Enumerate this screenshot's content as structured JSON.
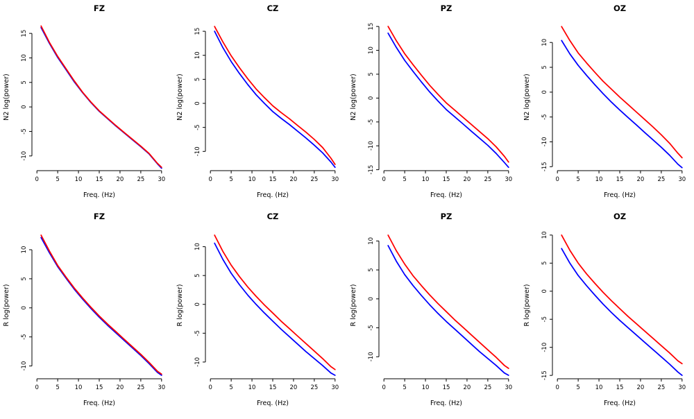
{
  "figure": {
    "background": "#ffffff",
    "rows": 2,
    "cols": 4
  },
  "colors": {
    "red_series": "#FF0000",
    "blue_series": "#0000FF",
    "axis": "#000000"
  },
  "chart_data": [
    {
      "type": "line",
      "title": "FZ",
      "xlabel": "Freq. (Hz)",
      "ylabel": "N2 log(power)",
      "xlim": [
        -1.2,
        31.2
      ],
      "ylim": [
        -13.0,
        17.0
      ],
      "xticks": [
        0,
        5,
        10,
        15,
        20,
        25,
        30
      ],
      "yticks": [
        -10,
        -5,
        0,
        5,
        10,
        15
      ],
      "x": [
        1,
        3,
        5,
        7,
        9,
        11,
        13,
        15,
        17,
        19,
        21,
        23,
        25,
        27,
        29,
        30
      ],
      "series": [
        {
          "name": "red",
          "color": "#FF0000",
          "values": [
            16.5,
            13.2,
            10.3,
            7.8,
            5.3,
            3.0,
            1.0,
            -0.8,
            -2.3,
            -3.8,
            -5.2,
            -6.6,
            -8.0,
            -9.5,
            -11.5,
            -12.3
          ]
        },
        {
          "name": "blue",
          "color": "#0000FF",
          "values": [
            16.2,
            13.0,
            10.1,
            7.6,
            5.1,
            2.9,
            0.9,
            -0.9,
            -2.4,
            -3.9,
            -5.3,
            -6.7,
            -8.1,
            -9.6,
            -11.6,
            -12.5
          ]
        }
      ]
    },
    {
      "type": "line",
      "title": "CZ",
      "xlabel": "Freq. (Hz)",
      "ylabel": "N2 log(power)",
      "xlim": [
        -1.2,
        31.2
      ],
      "ylim": [
        -14.0,
        16.6
      ],
      "xticks": [
        0,
        5,
        10,
        15,
        20,
        25,
        30
      ],
      "yticks": [
        -10,
        -5,
        0,
        5,
        10,
        15
      ],
      "x": [
        1,
        3,
        5,
        7,
        9,
        11,
        13,
        15,
        17,
        19,
        21,
        23,
        25,
        27,
        29,
        30
      ],
      "series": [
        {
          "name": "red",
          "color": "#FF0000",
          "values": [
            16.0,
            12.8,
            9.9,
            7.4,
            5.1,
            3.0,
            1.2,
            -0.5,
            -1.9,
            -3.2,
            -4.6,
            -6.0,
            -7.5,
            -9.2,
            -11.4,
            -12.7
          ]
        },
        {
          "name": "blue",
          "color": "#0000FF",
          "values": [
            15.0,
            11.6,
            8.7,
            6.2,
            3.9,
            1.8,
            0.0,
            -1.7,
            -3.1,
            -4.4,
            -5.8,
            -7.2,
            -8.7,
            -10.3,
            -12.2,
            -13.3
          ]
        }
      ]
    },
    {
      "type": "line",
      "title": "PZ",
      "xlabel": "Freq. (Hz)",
      "ylabel": "N2 log(power)",
      "xlim": [
        -1.2,
        31.2
      ],
      "ylim": [
        -15.2,
        15.6
      ],
      "xticks": [
        0,
        5,
        10,
        15,
        20,
        25,
        30
      ],
      "yticks": [
        -15,
        -10,
        -5,
        0,
        5,
        10,
        15
      ],
      "x": [
        1,
        3,
        5,
        7,
        9,
        11,
        13,
        15,
        17,
        19,
        21,
        23,
        25,
        27,
        29,
        30
      ],
      "series": [
        {
          "name": "red",
          "color": "#FF0000",
          "values": [
            15.0,
            12.0,
            9.3,
            7.0,
            4.8,
            2.7,
            0.8,
            -1.0,
            -2.5,
            -4.0,
            -5.5,
            -7.0,
            -8.5,
            -10.2,
            -12.2,
            -13.4
          ]
        },
        {
          "name": "blue",
          "color": "#0000FF",
          "values": [
            13.6,
            10.6,
            7.9,
            5.6,
            3.4,
            1.3,
            -0.6,
            -2.4,
            -3.9,
            -5.4,
            -6.9,
            -8.4,
            -9.9,
            -11.6,
            -13.5,
            -14.5
          ]
        }
      ]
    },
    {
      "type": "line",
      "title": "OZ",
      "xlabel": "Freq. (Hz)",
      "ylabel": "N2 log(power)",
      "xlim": [
        -1.2,
        31.2
      ],
      "ylim": [
        -15.8,
        13.8
      ],
      "xticks": [
        0,
        5,
        10,
        15,
        20,
        25,
        30
      ],
      "yticks": [
        -15,
        -10,
        -5,
        0,
        5,
        10
      ],
      "x": [
        1,
        3,
        5,
        7,
        9,
        11,
        13,
        15,
        17,
        19,
        21,
        23,
        25,
        27,
        29,
        30
      ],
      "series": [
        {
          "name": "red",
          "color": "#FF0000",
          "values": [
            13.2,
            10.4,
            7.9,
            5.9,
            4.0,
            2.2,
            0.6,
            -1.0,
            -2.5,
            -4.0,
            -5.5,
            -7.0,
            -8.6,
            -10.3,
            -12.3,
            -13.2
          ]
        },
        {
          "name": "blue",
          "color": "#0000FF",
          "values": [
            10.4,
            7.7,
            5.4,
            3.4,
            1.5,
            -0.3,
            -2.0,
            -3.6,
            -5.1,
            -6.6,
            -8.1,
            -9.6,
            -11.1,
            -12.7,
            -14.5,
            -15.2
          ]
        }
      ]
    },
    {
      "type": "line",
      "title": "FZ",
      "xlabel": "Freq. (Hz)",
      "ylabel": "R log(power)",
      "xlim": [
        -1.2,
        31.2
      ],
      "ylim": [
        -12.2,
        13.1
      ],
      "xticks": [
        0,
        5,
        10,
        15,
        20,
        25,
        30
      ],
      "yticks": [
        -10,
        -5,
        0,
        5,
        10
      ],
      "x": [
        1,
        3,
        5,
        7,
        9,
        11,
        13,
        15,
        17,
        19,
        21,
        23,
        25,
        27,
        29,
        30
      ],
      "series": [
        {
          "name": "red",
          "color": "#FF0000",
          "values": [
            12.5,
            9.8,
            7.3,
            5.3,
            3.4,
            1.7,
            0.1,
            -1.4,
            -2.8,
            -4.1,
            -5.4,
            -6.7,
            -8.0,
            -9.4,
            -10.9,
            -11.4
          ]
        },
        {
          "name": "blue",
          "color": "#0000FF",
          "values": [
            12.1,
            9.5,
            7.1,
            5.1,
            3.2,
            1.5,
            -0.1,
            -1.6,
            -3.0,
            -4.3,
            -5.6,
            -6.9,
            -8.2,
            -9.6,
            -11.1,
            -11.6
          ]
        }
      ]
    },
    {
      "type": "line",
      "title": "CZ",
      "xlabel": "Freq. (Hz)",
      "ylabel": "R log(power)",
      "xlim": [
        -1.2,
        31.2
      ],
      "ylim": [
        -12.9,
        12.6
      ],
      "xticks": [
        0,
        5,
        10,
        15,
        20,
        25,
        30
      ],
      "yticks": [
        -10,
        -5,
        0,
        5,
        10
      ],
      "x": [
        1,
        3,
        5,
        7,
        9,
        11,
        13,
        15,
        17,
        19,
        21,
        23,
        25,
        27,
        29,
        30
      ],
      "series": [
        {
          "name": "red",
          "color": "#FF0000",
          "values": [
            12.0,
            9.2,
            6.8,
            4.8,
            3.0,
            1.4,
            -0.1,
            -1.5,
            -2.9,
            -4.2,
            -5.5,
            -6.8,
            -8.1,
            -9.4,
            -10.8,
            -11.3
          ]
        },
        {
          "name": "blue",
          "color": "#0000FF",
          "values": [
            10.6,
            7.8,
            5.4,
            3.4,
            1.6,
            0.0,
            -1.5,
            -2.9,
            -4.3,
            -5.6,
            -6.9,
            -8.2,
            -9.4,
            -10.6,
            -11.9,
            -12.3
          ]
        }
      ]
    },
    {
      "type": "line",
      "title": "PZ",
      "xlabel": "Freq. (Hz)",
      "ylabel": "R log(power)",
      "xlim": [
        -1.2,
        31.2
      ],
      "ylim": [
        -13.8,
        11.6
      ],
      "xticks": [
        0,
        5,
        10,
        15,
        20,
        25,
        30
      ],
      "yticks": [
        -10,
        -5,
        0,
        5,
        10
      ],
      "x": [
        1,
        3,
        5,
        7,
        9,
        11,
        13,
        15,
        17,
        19,
        21,
        23,
        25,
        27,
        29,
        30
      ],
      "series": [
        {
          "name": "red",
          "color": "#FF0000",
          "values": [
            11.0,
            8.3,
            6.0,
            4.0,
            2.3,
            0.7,
            -0.8,
            -2.2,
            -3.6,
            -4.9,
            -6.2,
            -7.5,
            -8.8,
            -10.1,
            -11.5,
            -12.0
          ]
        },
        {
          "name": "blue",
          "color": "#0000FF",
          "values": [
            9.2,
            6.5,
            4.2,
            2.3,
            0.6,
            -1.0,
            -2.5,
            -3.9,
            -5.2,
            -6.5,
            -7.8,
            -9.1,
            -10.3,
            -11.5,
            -12.8,
            -13.2
          ]
        }
      ]
    },
    {
      "type": "line",
      "title": "OZ",
      "xlabel": "Freq. (Hz)",
      "ylabel": "R log(power)",
      "xlim": [
        -1.2,
        31.2
      ],
      "ylim": [
        -15.6,
        10.6
      ],
      "xticks": [
        0,
        5,
        10,
        15,
        20,
        25,
        30
      ],
      "yticks": [
        -15,
        -10,
        -5,
        0,
        5,
        10
      ],
      "x": [
        1,
        3,
        5,
        7,
        9,
        11,
        13,
        15,
        17,
        19,
        21,
        23,
        25,
        27,
        29,
        30
      ],
      "series": [
        {
          "name": "red",
          "color": "#FF0000",
          "values": [
            10.0,
            7.3,
            5.0,
            3.1,
            1.4,
            -0.2,
            -1.7,
            -3.1,
            -4.5,
            -5.8,
            -7.1,
            -8.4,
            -9.7,
            -11.0,
            -12.4,
            -12.9
          ]
        },
        {
          "name": "blue",
          "color": "#0000FF",
          "values": [
            7.6,
            5.0,
            2.8,
            1.0,
            -0.7,
            -2.3,
            -3.8,
            -5.2,
            -6.5,
            -7.8,
            -9.1,
            -10.4,
            -11.7,
            -13.0,
            -14.4,
            -15.0
          ]
        }
      ]
    }
  ]
}
